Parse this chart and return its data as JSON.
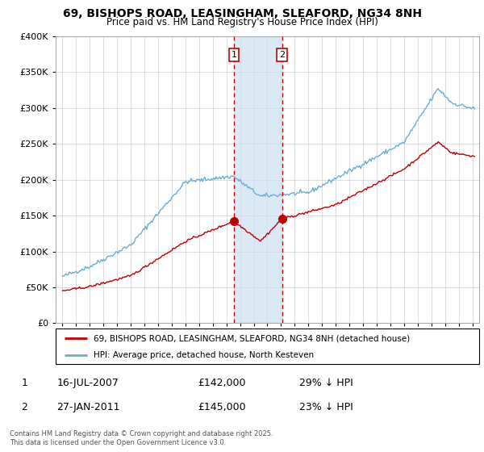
{
  "title": "69, BISHOPS ROAD, LEASINGHAM, SLEAFORD, NG34 8NH",
  "subtitle": "Price paid vs. HM Land Registry's House Price Index (HPI)",
  "hpi_label": "HPI: Average price, detached house, North Kesteven",
  "price_label": "69, BISHOPS ROAD, LEASINGHAM, SLEAFORD, NG34 8NH (detached house)",
  "footer": "Contains HM Land Registry data © Crown copyright and database right 2025.\nThis data is licensed under the Open Government Licence v3.0.",
  "annotation1": {
    "num": "1",
    "date": "16-JUL-2007",
    "price": "£142,000",
    "hpi": "29% ↓ HPI"
  },
  "annotation2": {
    "num": "2",
    "date": "27-JAN-2011",
    "price": "£145,000",
    "hpi": "23% ↓ HPI"
  },
  "sale1_x": 2007.54,
  "sale1_y": 142000,
  "sale2_x": 2011.07,
  "sale2_y": 145000,
  "vline1_x": 2007.54,
  "vline2_x": 2011.07,
  "shade_x1": 2007.54,
  "shade_x2": 2011.07,
  "ylim": [
    0,
    400000
  ],
  "xlim": [
    1994.5,
    2025.5
  ],
  "yticks": [
    0,
    50000,
    100000,
    150000,
    200000,
    250000,
    300000,
    350000,
    400000
  ],
  "ytick_labels": [
    "£0",
    "£50K",
    "£100K",
    "£150K",
    "£200K",
    "£250K",
    "£300K",
    "£350K",
    "£400K"
  ],
  "xticks": [
    1995,
    1996,
    1997,
    1998,
    1999,
    2000,
    2001,
    2002,
    2003,
    2004,
    2005,
    2006,
    2007,
    2008,
    2009,
    2010,
    2011,
    2012,
    2013,
    2014,
    2015,
    2016,
    2017,
    2018,
    2019,
    2020,
    2021,
    2022,
    2023,
    2024,
    2025
  ],
  "hpi_color": "#6aaed6",
  "price_color": "#c00000",
  "vline_color": "#c00000",
  "shade_color": "#cce0f0",
  "grid_color": "#d0d0d0",
  "background_color": "#ffffff",
  "title_fontsize": 10,
  "subtitle_fontsize": 8.5
}
